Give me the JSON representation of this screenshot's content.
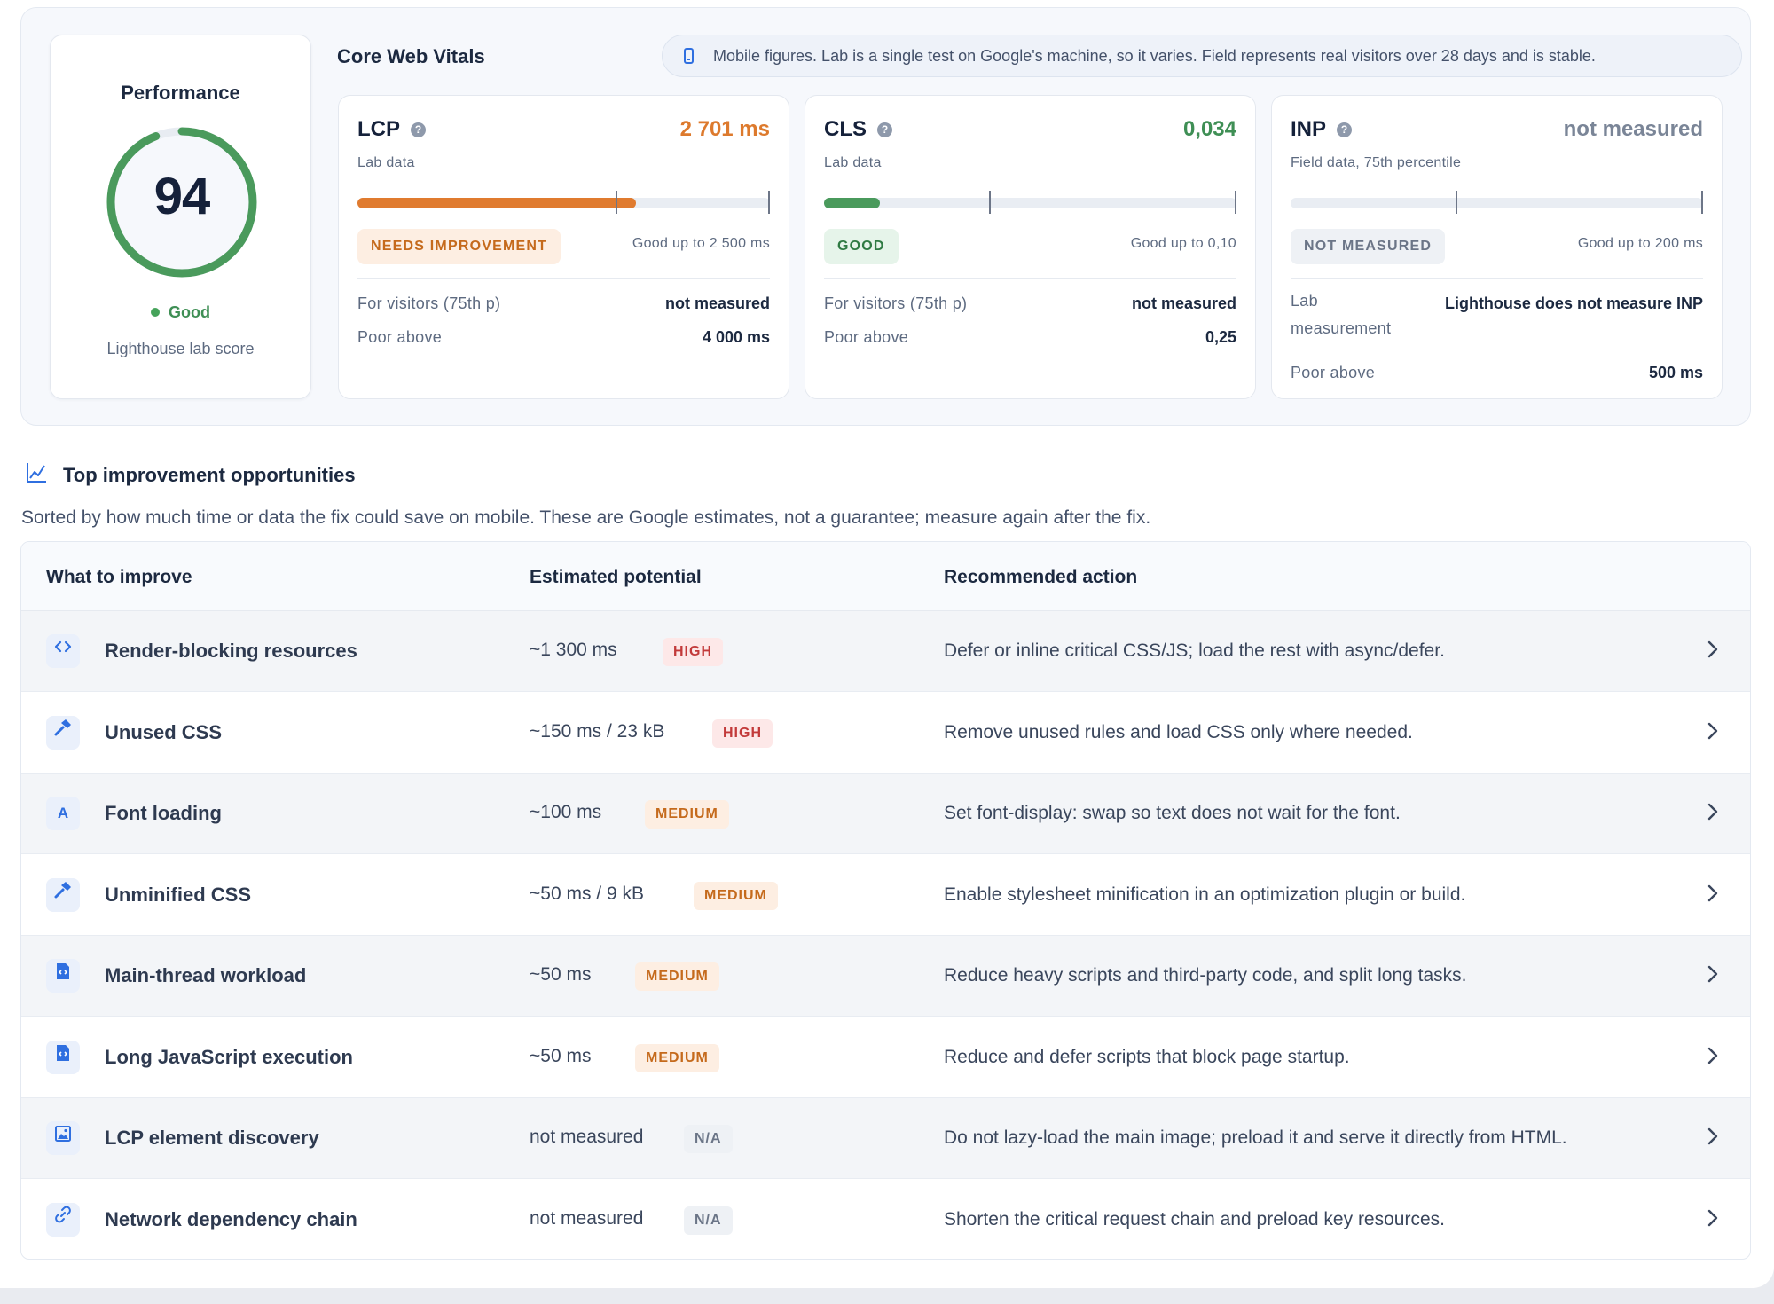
{
  "performance": {
    "title": "Performance",
    "score": "94",
    "score_value": 94,
    "status": "Good",
    "subtitle": "Lighthouse lab score",
    "gauge_color": "#4a9a5c"
  },
  "cwv": {
    "title": "Core Web Vitals",
    "note": "Mobile figures. Lab is a single test on Google's machine, so it varies. Field represents real visitors over 28 days and is stable.",
    "note_icon": "phone-icon"
  },
  "metrics": [
    {
      "name": "LCP",
      "sub": "Lab data",
      "value": "2 701 ms",
      "value_color": "#dd7a2d",
      "fill_fraction": 0.675,
      "fill_color": "#e07b2f",
      "threshold_fraction": 0.625,
      "pill": "NEEDS IMPROVEMENT",
      "pill_bg": "#fdeee2",
      "pill_color": "#c56a1c",
      "good": "Good up to 2 500 ms",
      "row1_label": "For visitors (75th p)",
      "row1_value": "not measured",
      "row2_label": "Poor above",
      "row2_value": "4 000 ms"
    },
    {
      "name": "CLS",
      "sub": "Lab data",
      "value": "0,034",
      "value_color": "#3f8f55",
      "fill_fraction": 0.136,
      "fill_color": "#4a9a5c",
      "threshold_fraction": 0.4,
      "pill": "GOOD",
      "pill_bg": "#e6f4ea",
      "pill_color": "#2f7a43",
      "good": "Good up to 0,10",
      "row1_label": "For visitors (75th p)",
      "row1_value": "not measured",
      "row2_label": "Poor above",
      "row2_value": "0,25"
    },
    {
      "name": "INP",
      "sub": "Field data, 75th percentile",
      "value": "not measured",
      "value_color": "#7a8597",
      "fill_fraction": 0,
      "fill_color": "#c9d0da",
      "threshold_fraction": 0.4,
      "pill": "NOT MEASURED",
      "pill_bg": "#eef1f5",
      "pill_color": "#6b7587",
      "good": "Good up to 200 ms",
      "row1_label": "Lab measurement",
      "row1_value": "Lighthouse does not measure INP",
      "row2_label": "Poor above",
      "row2_value": "500 ms"
    }
  ],
  "opportunities": {
    "title": "Top improvement opportunities",
    "icon": "chart-trend-icon",
    "description": "Sorted by how much time or data the fix could save on mobile. These are Google estimates, not a guarantee; measure again after the fix.",
    "headers": [
      "What to improve",
      "Estimated potential",
      "Recommended action"
    ],
    "rows": [
      {
        "icon": "code-icon",
        "name": "Render-blocking resources",
        "potential": "~1 300 ms",
        "badge": "HIGH",
        "level": "high",
        "action": "Defer or inline critical CSS/JS; load the rest with async/defer."
      },
      {
        "icon": "hammer-icon",
        "name": "Unused CSS",
        "potential": "~150 ms / 23 kB",
        "badge": "HIGH",
        "level": "high",
        "action": "Remove unused rules and load CSS only where needed."
      },
      {
        "icon": "font-icon",
        "name": "Font loading",
        "potential": "~100 ms",
        "badge": "MEDIUM",
        "level": "medium",
        "action": "Set font-display: swap so text does not wait for the font."
      },
      {
        "icon": "hammer-icon",
        "name": "Unminified CSS",
        "potential": "~50 ms / 9 kB",
        "badge": "MEDIUM",
        "level": "medium",
        "action": "Enable stylesheet minification in an optimization plugin or build."
      },
      {
        "icon": "script-file-icon",
        "name": "Main-thread workload",
        "potential": "~50 ms",
        "badge": "MEDIUM",
        "level": "medium",
        "action": "Reduce heavy scripts and third-party code, and split long tasks."
      },
      {
        "icon": "script-file-icon",
        "name": "Long JavaScript execution",
        "potential": "~50 ms",
        "badge": "MEDIUM",
        "level": "medium",
        "action": "Reduce and defer scripts that block page startup."
      },
      {
        "icon": "image-icon",
        "name": "LCP element discovery",
        "potential": "not measured",
        "badge": "N/A",
        "level": "na",
        "action": "Do not lazy-load the main image; preload it and serve it directly from HTML."
      },
      {
        "icon": "link-icon",
        "name": "Network dependency chain",
        "potential": "not measured",
        "badge": "N/A",
        "level": "na",
        "action": "Shorten the critical request chain and preload key resources."
      }
    ]
  }
}
